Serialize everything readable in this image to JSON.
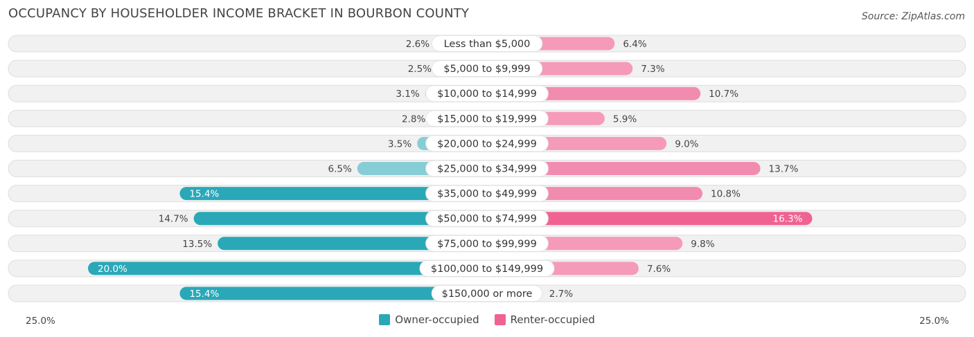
{
  "title": "OCCUPANCY BY HOUSEHOLDER INCOME BRACKET IN BOURBON COUNTY",
  "source": "Source: ZipAtlas.com",
  "colors": {
    "owner": "#2aa8b8",
    "owner_light": "#86cdd6",
    "renter": "#f06292",
    "renter_light": "#f59ab9",
    "track": "#f1f1f1"
  },
  "chart_data": {
    "type": "bar",
    "orientation": "horizontal-diverging",
    "categories": [
      "Less than $5,000",
      "$5,000 to $9,999",
      "$10,000 to $14,999",
      "$15,000 to $19,999",
      "$20,000 to $24,999",
      "$25,000 to $34,999",
      "$35,000 to $49,999",
      "$50,000 to $74,999",
      "$75,000 to $99,999",
      "$100,000 to $149,999",
      "$150,000 or more"
    ],
    "series": [
      {
        "name": "Owner-occupied",
        "values": [
          2.6,
          2.5,
          3.1,
          2.8,
          3.5,
          6.5,
          15.4,
          14.7,
          13.5,
          20.0,
          15.4
        ],
        "labels": [
          "2.6%",
          "2.5%",
          "3.1%",
          "2.8%",
          "3.5%",
          "6.5%",
          "15.4%",
          "14.7%",
          "13.5%",
          "20.0%",
          "15.4%"
        ]
      },
      {
        "name": "Renter-occupied",
        "values": [
          6.4,
          7.3,
          10.7,
          5.9,
          9.0,
          13.7,
          10.8,
          16.3,
          9.8,
          7.6,
          2.7
        ],
        "labels": [
          "6.4%",
          "7.3%",
          "10.7%",
          "5.9%",
          "9.0%",
          "13.7%",
          "10.8%",
          "16.3%",
          "9.8%",
          "7.6%",
          "2.7%"
        ]
      }
    ],
    "axis_min_label": "25.0%",
    "axis_max_label": "25.0%",
    "xlim": [
      -25,
      25
    ],
    "legend": {
      "position": "bottom-center",
      "items": [
        "Owner-occupied",
        "Renter-occupied"
      ]
    }
  }
}
